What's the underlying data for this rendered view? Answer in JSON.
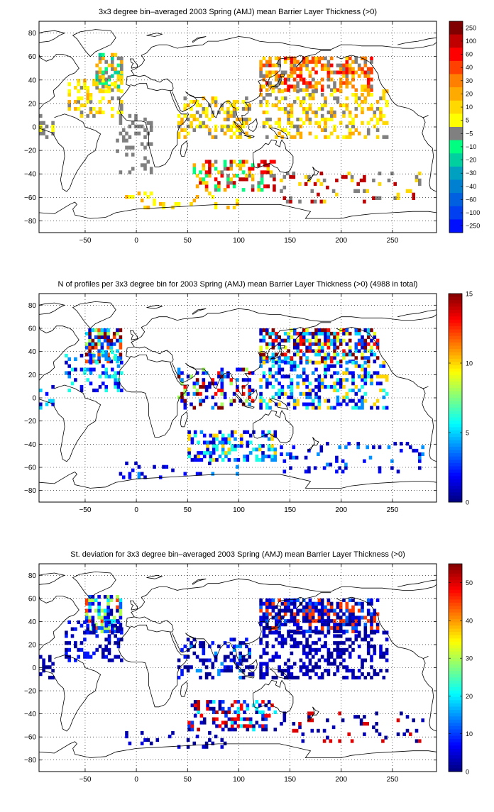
{
  "chart_data": [
    {
      "type": "heatmap",
      "title": "3x3 degree bin–averaged 2003 Spring (AMJ) mean Barrier Layer Thickness (>0)",
      "xticks": [
        -50,
        0,
        50,
        100,
        150,
        200,
        250
      ],
      "yticks": [
        80,
        60,
        40,
        20,
        0,
        -20,
        -40,
        -60,
        -80
      ],
      "xlim": [
        -95,
        293
      ],
      "ylim": [
        -90,
        90
      ],
      "grid": true,
      "colorbar": {
        "type": "discrete",
        "labels": [
          "250",
          "100",
          "60",
          "40",
          "30",
          "20",
          "10",
          "5",
          "-5",
          "-10",
          "-20",
          "-30",
          "-40",
          "-60",
          "-100",
          "-250"
        ],
        "colors": [
          "#800000",
          "#c00000",
          "#ff0000",
          "#ff4000",
          "#ff8000",
          "#ffaa00",
          "#ffd800",
          "#ffff00",
          "#808080",
          "#00ff80",
          "#00d0a0",
          "#00a0c0",
          "#0080d0",
          "#0060e0",
          "#0040f0",
          "#0010ff"
        ]
      },
      "regions": [
        {
          "lon": [
            -40,
            -15
          ],
          "lat": [
            30,
            62
          ],
          "values": [
            -10,
            -20,
            20,
            -5,
            10
          ],
          "density": 0.55
        },
        {
          "lon": [
            -70,
            -15
          ],
          "lat": [
            8,
            42
          ],
          "values": [
            -5,
            10,
            20,
            5
          ],
          "density": 0.3
        },
        {
          "lon": [
            -95,
            -80
          ],
          "lat": [
            -10,
            10
          ],
          "values": [
            -5,
            5
          ],
          "density": 0.35
        },
        {
          "lon": [
            -20,
            15
          ],
          "lat": [
            -40,
            10
          ],
          "values": [
            -5
          ],
          "density": 0.2
        },
        {
          "lon": [
            40,
            110
          ],
          "lat": [
            -10,
            25
          ],
          "values": [
            -5,
            10,
            20,
            5
          ],
          "density": 0.35
        },
        {
          "lon": [
            55,
            135
          ],
          "lat": [
            -55,
            -28
          ],
          "values": [
            -5,
            10,
            20,
            -10,
            60,
            100
          ],
          "density": 0.4
        },
        {
          "lon": [
            120,
            230
          ],
          "lat": [
            30,
            60
          ],
          "values": [
            20,
            30,
            40,
            60,
            -5,
            10
          ],
          "density": 0.55
        },
        {
          "lon": [
            120,
            245
          ],
          "lat": [
            -10,
            30
          ],
          "values": [
            -5,
            10,
            20,
            5
          ],
          "density": 0.35
        },
        {
          "lon": [
            140,
            280
          ],
          "lat": [
            -65,
            -40
          ],
          "values": [
            -5,
            10,
            100
          ],
          "density": 0.15
        },
        {
          "lon": [
            -20,
            100
          ],
          "lat": [
            -70,
            -55
          ],
          "values": [
            10,
            5,
            20
          ],
          "density": 0.15
        }
      ]
    },
    {
      "type": "heatmap",
      "title": "N of profiles per 3x3 degree bin for 2003 Spring (AMJ) mean Barrier Layer Thickness (>0) (4988 in total)",
      "xticks": [
        -50,
        0,
        50,
        100,
        150,
        200,
        250
      ],
      "yticks": [
        80,
        60,
        40,
        20,
        0,
        -20,
        -40,
        -60,
        -80
      ],
      "xlim": [
        -95,
        293
      ],
      "ylim": [
        -90,
        90
      ],
      "grid": true,
      "colorbar": {
        "type": "continuous",
        "ticks": [
          0,
          5,
          10,
          15
        ],
        "range": [
          0,
          15
        ]
      },
      "regions": [
        {
          "lon": [
            -50,
            -15
          ],
          "lat": [
            30,
            60
          ],
          "values": [
            1,
            3,
            5,
            8,
            12,
            15
          ],
          "density": 0.6
        },
        {
          "lon": [
            -70,
            -15
          ],
          "lat": [
            5,
            40
          ],
          "values": [
            1,
            2,
            4,
            6
          ],
          "density": 0.3
        },
        {
          "lon": [
            -95,
            -80
          ],
          "lat": [
            -10,
            10
          ],
          "values": [
            1,
            2,
            5
          ],
          "density": 0.35
        },
        {
          "lon": [
            40,
            115
          ],
          "lat": [
            -10,
            25
          ],
          "values": [
            1,
            2,
            4,
            8,
            13,
            15
          ],
          "density": 0.35
        },
        {
          "lon": [
            50,
            135
          ],
          "lat": [
            -55,
            -28
          ],
          "values": [
            1,
            2,
            4,
            6,
            10
          ],
          "density": 0.45
        },
        {
          "lon": [
            120,
            235
          ],
          "lat": [
            30,
            60
          ],
          "values": [
            1,
            3,
            5,
            9,
            13,
            15
          ],
          "density": 0.6
        },
        {
          "lon": [
            120,
            245
          ],
          "lat": [
            -10,
            30
          ],
          "values": [
            1,
            2,
            4,
            6,
            10
          ],
          "density": 0.4
        },
        {
          "lon": [
            140,
            280
          ],
          "lat": [
            -65,
            -40
          ],
          "values": [
            1,
            2,
            4
          ],
          "density": 0.15
        },
        {
          "lon": [
            -20,
            100
          ],
          "lat": [
            -70,
            -55
          ],
          "values": [
            1,
            2,
            4
          ],
          "density": 0.15
        }
      ]
    },
    {
      "type": "heatmap",
      "title": "St. deviation for 3x3 degree bin–averaged 2003 Spring (AMJ) mean Barrier Layer Thickness (>0)",
      "xticks": [
        -50,
        0,
        50,
        100,
        150,
        200,
        250
      ],
      "yticks": [
        80,
        60,
        40,
        20,
        0,
        -20,
        -40,
        -60,
        -80
      ],
      "xlim": [
        -95,
        293
      ],
      "ylim": [
        -90,
        90
      ],
      "grid": true,
      "colorbar": {
        "type": "continuous",
        "ticks": [
          0,
          10,
          20,
          30,
          40,
          50
        ],
        "range": [
          0,
          55
        ]
      },
      "regions": [
        {
          "lon": [
            -50,
            -15
          ],
          "lat": [
            30,
            62
          ],
          "values": [
            2,
            6,
            12,
            20,
            30,
            45
          ],
          "density": 0.6
        },
        {
          "lon": [
            -70,
            -15
          ],
          "lat": [
            5,
            40
          ],
          "values": [
            1,
            3,
            8
          ],
          "density": 0.35
        },
        {
          "lon": [
            -95,
            -80
          ],
          "lat": [
            -10,
            10
          ],
          "values": [
            1,
            3
          ],
          "density": 0.35
        },
        {
          "lon": [
            40,
            115
          ],
          "lat": [
            -10,
            25
          ],
          "values": [
            1,
            3,
            8,
            15
          ],
          "density": 0.35
        },
        {
          "lon": [
            50,
            135
          ],
          "lat": [
            -55,
            -28
          ],
          "values": [
            1,
            4,
            10,
            20,
            48,
            52
          ],
          "density": 0.45
        },
        {
          "lon": [
            120,
            235
          ],
          "lat": [
            30,
            60
          ],
          "values": [
            1,
            3,
            6,
            12,
            45
          ],
          "density": 0.6
        },
        {
          "lon": [
            120,
            245
          ],
          "lat": [
            -10,
            30
          ],
          "values": [
            1,
            2,
            5
          ],
          "density": 0.4
        },
        {
          "lon": [
            140,
            280
          ],
          "lat": [
            -65,
            -40
          ],
          "values": [
            1,
            3,
            50
          ],
          "density": 0.15
        },
        {
          "lon": [
            -20,
            100
          ],
          "lat": [
            -70,
            -55
          ],
          "values": [
            1,
            2,
            5
          ],
          "density": 0.15
        }
      ]
    }
  ]
}
